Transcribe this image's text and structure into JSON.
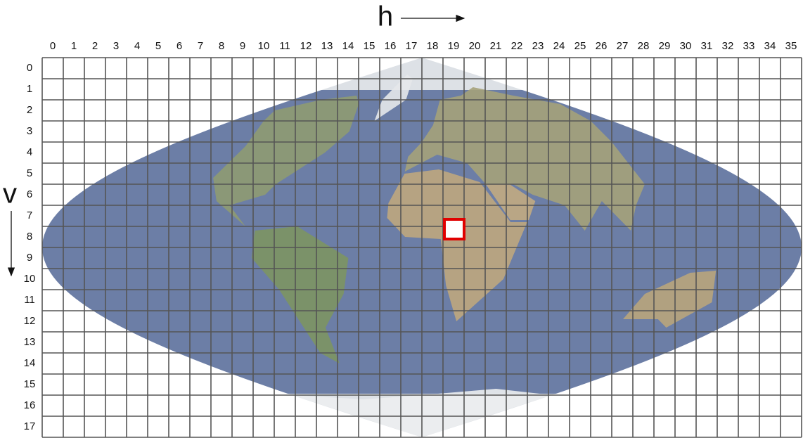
{
  "axes": {
    "h_label": "h",
    "v_label": "v"
  },
  "columns": [
    0,
    1,
    2,
    3,
    4,
    5,
    6,
    7,
    8,
    9,
    10,
    11,
    12,
    13,
    14,
    15,
    16,
    17,
    18,
    19,
    20,
    21,
    22,
    23,
    24,
    25,
    26,
    27,
    28,
    29,
    30,
    31,
    32,
    33,
    34,
    35
  ],
  "rows": [
    0,
    1,
    2,
    3,
    4,
    5,
    6,
    7,
    8,
    9,
    10,
    11,
    12,
    13,
    14,
    15,
    16,
    17
  ],
  "highlight": {
    "h": 19,
    "v": 8
  }
}
